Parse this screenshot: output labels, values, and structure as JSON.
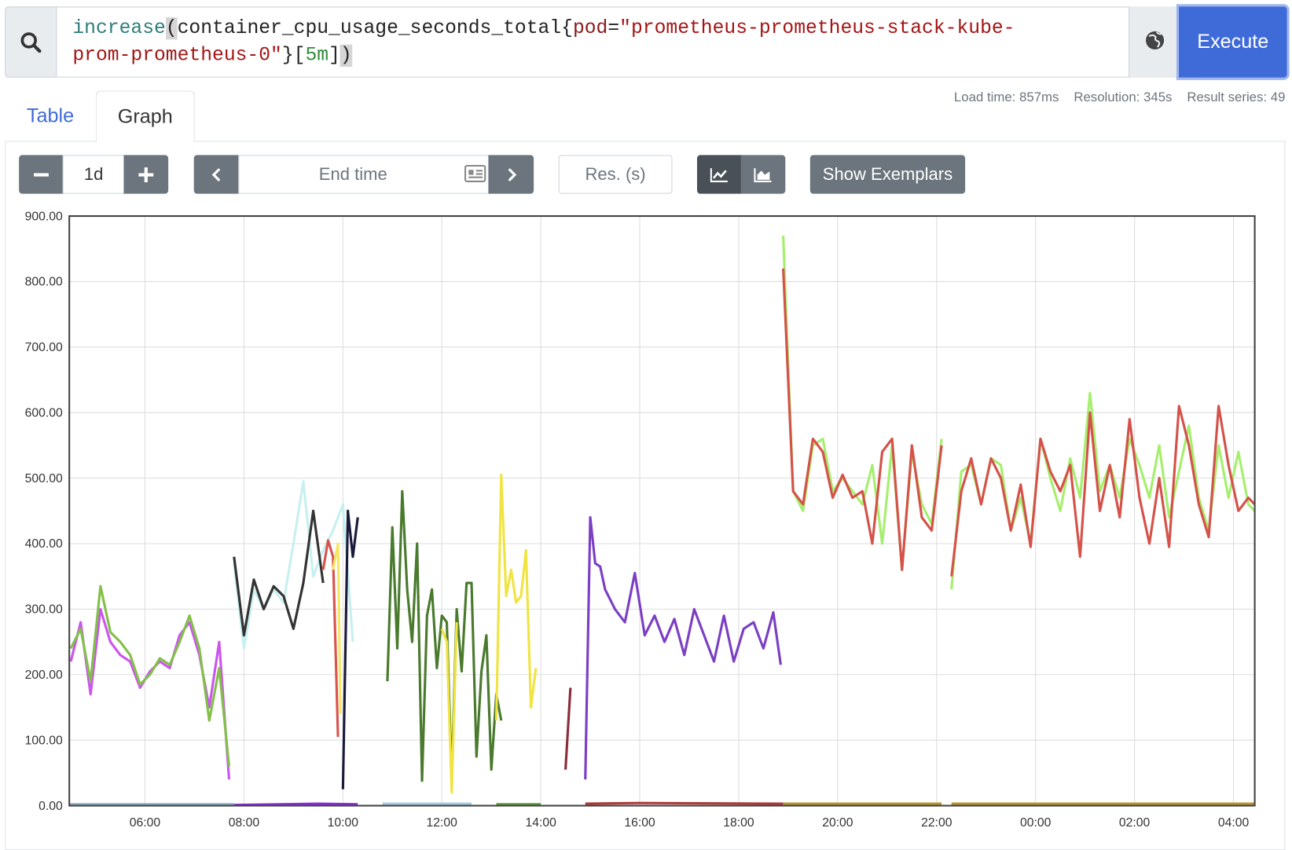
{
  "query": {
    "tokens": [
      "increase",
      "(",
      "container_cpu_usage_seconds_total",
      "{",
      "pod",
      "=",
      "\"prometheus-prometheus-stack-kube-prom-prometheus-0\"",
      "}",
      "[",
      "5m",
      "]",
      ")"
    ]
  },
  "execute": "Execute",
  "tabs": [
    "Table",
    "Graph"
  ],
  "stats": [
    "Load time: 857ms",
    "Resolution: 345s",
    "Result series: 49"
  ],
  "controls": {
    "range": "1d",
    "end_time": "End time",
    "resolution": "Res. (s)",
    "exemplars": "Show Exemplars"
  },
  "chart_data": {
    "type": "line",
    "xlim": [
      4.47,
      28.43
    ],
    "ylim": [
      0,
      900
    ],
    "grid": true,
    "xticks": [
      {
        "value": 6,
        "label": "06:00"
      },
      {
        "value": 8,
        "label": "08:00"
      },
      {
        "value": 10,
        "label": "10:00"
      },
      {
        "value": 12,
        "label": "12:00"
      },
      {
        "value": 14,
        "label": "14:00"
      },
      {
        "value": 16,
        "label": "16:00"
      },
      {
        "value": 18,
        "label": "18:00"
      },
      {
        "value": 20,
        "label": "20:00"
      },
      {
        "value": 22,
        "label": "22:00"
      },
      {
        "value": 24,
        "label": "00:00"
      },
      {
        "value": 26,
        "label": "02:00"
      },
      {
        "value": 28,
        "label": "04:00"
      }
    ],
    "yticks": [
      {
        "value": 0,
        "label": "0.00"
      },
      {
        "value": 100,
        "label": "100.00"
      },
      {
        "value": 200,
        "label": "200.00"
      },
      {
        "value": 300,
        "label": "300.00"
      },
      {
        "value": 400,
        "label": "400.00"
      },
      {
        "value": 500,
        "label": "500.00"
      },
      {
        "value": 600,
        "label": "600.00"
      },
      {
        "value": 700,
        "label": "700.00"
      },
      {
        "value": 800,
        "label": "800.00"
      },
      {
        "value": 900,
        "label": "900.00"
      }
    ],
    "series": [
      {
        "color": "#8fb0c8",
        "x": [
          4.47,
          7.8
        ],
        "values": [
          2,
          2
        ]
      },
      {
        "color": "#8a2be2",
        "x": [
          7.8,
          9.5,
          10.3
        ],
        "values": [
          1,
          3,
          2
        ]
      },
      {
        "color": "#a8cce0",
        "x": [
          10.8,
          12.6
        ],
        "values": [
          3,
          3
        ]
      },
      {
        "color": "#5a9a3a",
        "x": [
          13.1,
          14.0
        ],
        "values": [
          2,
          2
        ]
      },
      {
        "color": "#b03a3a",
        "x": [
          14.9,
          16,
          18.9
        ],
        "values": [
          3,
          4,
          3
        ]
      },
      {
        "color": "#b8962e",
        "x": [
          18.9,
          22.1,
          22.2,
          22.3,
          28.43
        ],
        "values": [
          3,
          3,
          null,
          3,
          3
        ]
      },
      {
        "color": "#cc55ee",
        "x": [
          4.5,
          4.7,
          4.9,
          5.1,
          5.3,
          5.5,
          5.7,
          5.9,
          6.1,
          6.3,
          6.5,
          6.7,
          6.9,
          7.1,
          7.3,
          7.5,
          7.7
        ],
        "values": [
          220,
          280,
          170,
          300,
          250,
          230,
          220,
          180,
          205,
          220,
          210,
          260,
          280,
          230,
          150,
          250,
          40
        ]
      },
      {
        "color": "#82c04a",
        "x": [
          4.5,
          4.7,
          4.9,
          5.1,
          5.3,
          5.5,
          5.7,
          5.9,
          6.1,
          6.3,
          6.5,
          6.7,
          6.9,
          7.1,
          7.3,
          7.5,
          7.7
        ],
        "values": [
          240,
          270,
          190,
          335,
          265,
          250,
          230,
          185,
          200,
          225,
          215,
          250,
          290,
          240,
          130,
          210,
          60
        ]
      },
      {
        "color": "#c8f0f0",
        "x": [
          7.8,
          8.0,
          8.2,
          8.4,
          8.6,
          8.8,
          9.0,
          9.2,
          9.4,
          9.6,
          9.8,
          10.0,
          10.2
        ],
        "values": [
          370,
          240,
          330,
          300,
          330,
          310,
          400,
          495,
          350,
          390,
          420,
          460,
          250
        ]
      },
      {
        "color": "#333333",
        "x": [
          7.8,
          8.0,
          8.2,
          8.4,
          8.6,
          8.8,
          9.0,
          9.2,
          9.4,
          9.6
        ],
        "values": [
          380,
          260,
          345,
          300,
          335,
          320,
          270,
          340,
          450,
          340
        ]
      },
      {
        "color": "#d9534f",
        "x": [
          9.6,
          9.7,
          9.8,
          9.9
        ],
        "values": [
          360,
          405,
          380,
          105
        ]
      },
      {
        "color": "#f5e663",
        "x": [
          9.8,
          9.9,
          9.95
        ],
        "values": [
          360,
          400,
          140
        ]
      },
      {
        "color": "#1a1a3a",
        "x": [
          10.0,
          10.1,
          10.2,
          10.3
        ],
        "values": [
          25,
          450,
          380,
          440
        ]
      },
      {
        "color": "#4a7a2e",
        "x": [
          10.9,
          11.0,
          11.1,
          11.2,
          11.3,
          11.4,
          11.5,
          11.6,
          11.7,
          11.8,
          11.9,
          12.0,
          12.1,
          12.2,
          12.3,
          12.4,
          12.5,
          12.6,
          12.7,
          12.8,
          12.9,
          13.0,
          13.1,
          13.2
        ],
        "values": [
          190,
          425,
          240,
          480,
          330,
          250,
          400,
          38,
          290,
          330,
          210,
          290,
          280,
          40,
          300,
          205,
          340,
          340,
          75,
          205,
          260,
          55,
          170,
          130
        ]
      },
      {
        "color": "#f0e442",
        "x": [
          12.0,
          12.1,
          12.2,
          12.3,
          12.4,
          13.1,
          13.2,
          13.3,
          13.4,
          13.5,
          13.6,
          13.7,
          13.8,
          13.9
        ],
        "values": [
          270,
          250,
          20,
          280,
          null,
          130,
          505,
          320,
          360,
          310,
          320,
          390,
          150,
          210
        ]
      },
      {
        "color": "#8b2d3b",
        "x": [
          14.5,
          14.6
        ],
        "values": [
          55,
          180
        ]
      },
      {
        "color": "#7b3fc4",
        "x": [
          14.9,
          15.0,
          15.1,
          15.2,
          15.3,
          15.5,
          15.7,
          15.9,
          16.1,
          16.3,
          16.5,
          16.7,
          16.9,
          17.1,
          17.3,
          17.5,
          17.7,
          17.9,
          18.1,
          18.3,
          18.5,
          18.7,
          18.85
        ],
        "values": [
          40,
          440,
          370,
          365,
          330,
          300,
          280,
          355,
          260,
          290,
          250,
          285,
          230,
          300,
          260,
          220,
          290,
          220,
          270,
          280,
          240,
          295,
          215
        ]
      },
      {
        "color": "#a6ef6e",
        "x": [
          18.9,
          19.1,
          19.3,
          19.5,
          19.7,
          19.9,
          20.1,
          20.3,
          20.5,
          20.7,
          20.9,
          21.1,
          21.3,
          21.5,
          21.7,
          21.9,
          22.1,
          22.2,
          22.3,
          22.5,
          22.7,
          22.9,
          23.1,
          23.3,
          23.5,
          23.7,
          23.9,
          24.1,
          24.3,
          24.5,
          24.7,
          24.9,
          25.1,
          25.3,
          25.5,
          25.7,
          25.9,
          26.1,
          26.3,
          26.5,
          26.7,
          26.9,
          27.1,
          27.3,
          27.5,
          27.7,
          27.9,
          28.1,
          28.3,
          28.43
        ],
        "values": [
          870,
          480,
          450,
          550,
          560,
          480,
          500,
          480,
          460,
          520,
          400,
          550,
          360,
          540,
          460,
          430,
          560,
          null,
          330,
          510,
          520,
          460,
          530,
          520,
          420,
          470,
          400,
          560,
          500,
          450,
          530,
          470,
          630,
          480,
          520,
          470,
          560,
          520,
          470,
          550,
          440,
          510,
          580,
          470,
          420,
          550,
          470,
          540,
          460,
          450
        ]
      },
      {
        "color": "#d4524a",
        "x": [
          18.9,
          19.1,
          19.3,
          19.5,
          19.7,
          19.9,
          20.1,
          20.3,
          20.5,
          20.7,
          20.9,
          21.1,
          21.3,
          21.5,
          21.7,
          21.9,
          22.1,
          22.2,
          22.3,
          22.5,
          22.7,
          22.9,
          23.1,
          23.3,
          23.5,
          23.7,
          23.9,
          24.1,
          24.3,
          24.5,
          24.7,
          24.9,
          25.1,
          25.3,
          25.5,
          25.7,
          25.9,
          26.1,
          26.3,
          26.5,
          26.7,
          26.9,
          27.1,
          27.3,
          27.5,
          27.7,
          27.9,
          28.1,
          28.3,
          28.43
        ],
        "values": [
          820,
          480,
          460,
          560,
          540,
          470,
          505,
          470,
          480,
          400,
          540,
          560,
          360,
          550,
          440,
          420,
          550,
          null,
          350,
          480,
          530,
          460,
          530,
          500,
          420,
          490,
          395,
          560,
          510,
          480,
          520,
          380,
          600,
          450,
          520,
          440,
          590,
          470,
          400,
          500,
          395,
          610,
          550,
          460,
          410,
          610,
          520,
          450,
          470,
          460
        ]
      }
    ]
  }
}
